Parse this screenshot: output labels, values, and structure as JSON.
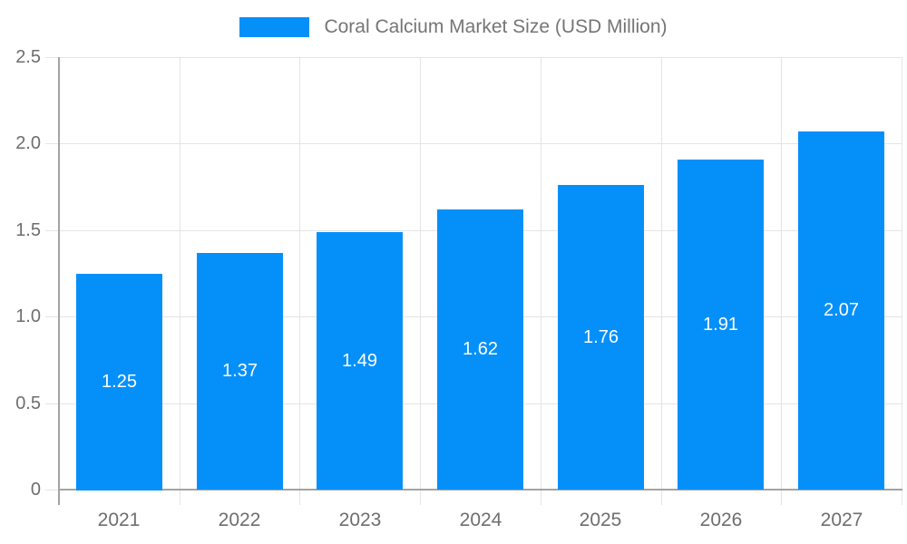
{
  "legend": {
    "label": "Coral Calcium Market Size (USD Million)"
  },
  "colors": {
    "bar": "#0590F9",
    "grid": "#e4e4e4",
    "axis": "#a3a3a3",
    "tick_text": "#6e6e6e",
    "legend_text": "#757575",
    "value_text": "#ffffff",
    "background": "#ffffff"
  },
  "chart_data": {
    "type": "bar",
    "title": "",
    "xlabel": "",
    "ylabel": "",
    "categories": [
      "2021",
      "2022",
      "2023",
      "2024",
      "2025",
      "2026",
      "2027"
    ],
    "series": [
      {
        "name": "Coral Calcium Market Size (USD Million)",
        "values": [
          1.25,
          1.37,
          1.49,
          1.62,
          1.76,
          1.91,
          2.07
        ]
      }
    ],
    "value_labels": [
      "1.25",
      "1.37",
      "1.49",
      "1.62",
      "1.76",
      "1.91",
      "2.07"
    ],
    "ylim": [
      0,
      2.5
    ],
    "yticks": [
      0,
      0.5,
      1.0,
      1.5,
      2.0,
      2.5
    ],
    "ytick_labels": [
      "0",
      "0.5",
      "1.0",
      "1.5",
      "2.0",
      "2.5"
    ],
    "grid": true,
    "legend_position": "top"
  }
}
